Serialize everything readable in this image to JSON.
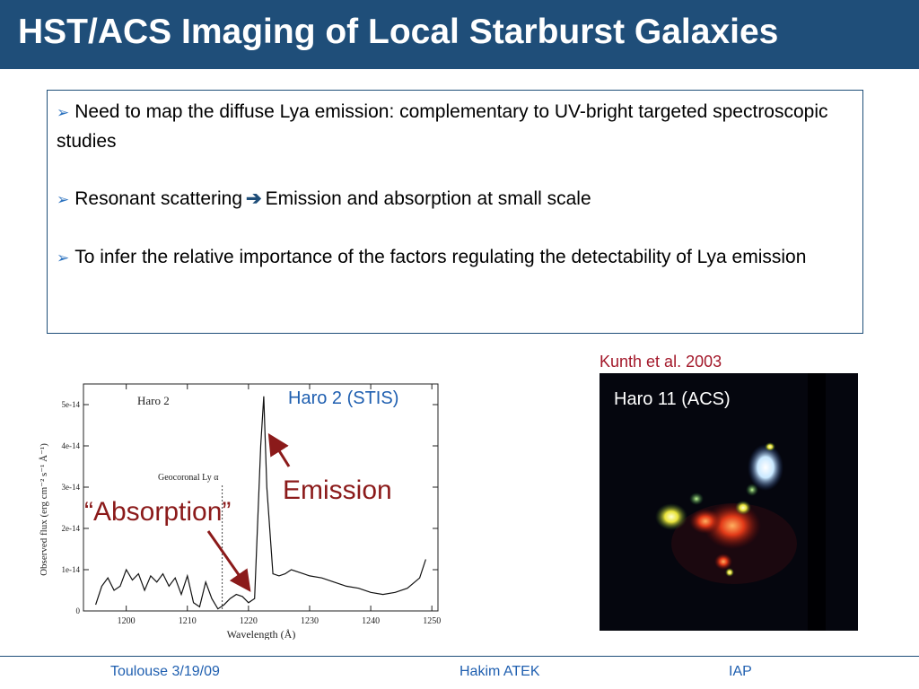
{
  "slide": {
    "title": "HST/ACS Imaging of Local Starburst Galaxies",
    "bullets": [
      {
        "text_a": "Need to map the diffuse Lya emission: complementary to UV-bright targeted spectroscopic studies"
      },
      {
        "text_a": "Resonant scattering",
        "text_b": "Emission and absorption at small scale"
      },
      {
        "text_a": "To infer the relative importance of the factors regulating the detectability of Lya emission"
      }
    ],
    "citation": "Kunth et al. 2003",
    "image_label": "Haro 11 (ACS)",
    "spectrum_label": "Haro 2 (STIS)",
    "emission_label": "Emission",
    "absorption_label": "“Absorption”",
    "footer": {
      "left": "Toulouse 3/19/09",
      "center": "Hakim ATEK",
      "right": "IAP"
    },
    "colors": {
      "title_bg": "#1f4e79",
      "annotation": "#8b1a1a",
      "link_blue": "#1f5fb0"
    }
  },
  "chart_data": {
    "type": "line",
    "title": "Haro 2",
    "annotation": "Geocoronal Ly α",
    "xlabel": "Wavelength (Å)",
    "ylabel": "Observed flux (erg cm⁻² s⁻¹ Å⁻¹)",
    "xlim": [
      1193,
      1251
    ],
    "ylim": [
      0,
      5.5e-14
    ],
    "xticks": [
      1200,
      1210,
      1220,
      1230,
      1240,
      1250
    ],
    "yticks": [
      0,
      1e-14,
      2e-14,
      3e-14,
      4e-14,
      5e-14
    ],
    "ytick_labels": [
      "0",
      "1e-14",
      "2e-14",
      "3e-14",
      "4e-14",
      "5e-14"
    ],
    "geocoronal_x": 1215.7,
    "x": [
      1195,
      1196,
      1197,
      1198,
      1199,
      1200,
      1201,
      1202,
      1203,
      1204,
      1205,
      1206,
      1207,
      1208,
      1209,
      1210,
      1211,
      1212,
      1213,
      1214,
      1215,
      1216,
      1217,
      1218,
      1219,
      1220,
      1221,
      1222,
      1222.5,
      1223,
      1224,
      1225,
      1226,
      1227,
      1228,
      1229,
      1230,
      1232,
      1234,
      1236,
      1238,
      1240,
      1242,
      1244,
      1246,
      1248,
      1249
    ],
    "y": [
      1.5e-15,
      6e-15,
      8e-15,
      5e-15,
      6e-15,
      1e-14,
      7.5e-15,
      9e-15,
      5e-15,
      8.5e-15,
      7e-15,
      9e-15,
      6e-15,
      8e-15,
      4e-15,
      8.5e-15,
      2e-15,
      1e-15,
      7e-15,
      3e-15,
      5e-16,
      1.5e-15,
      3e-15,
      4e-15,
      3.5e-15,
      2e-15,
      3e-15,
      4e-14,
      5.2e-14,
      3e-14,
      9e-15,
      8.5e-15,
      9e-15,
      1e-14,
      9.5e-15,
      9e-15,
      8.5e-15,
      8e-15,
      7e-15,
      6e-15,
      5.5e-15,
      4.5e-15,
      4e-15,
      4.5e-15,
      5.5e-15,
      8e-15,
      1.25e-14
    ]
  }
}
